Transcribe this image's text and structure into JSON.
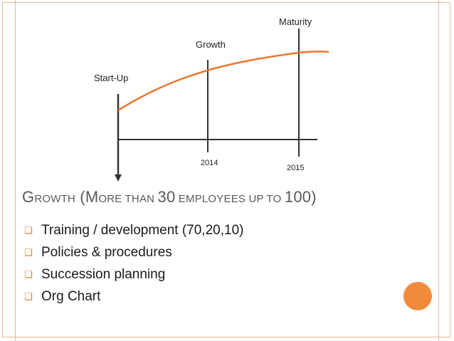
{
  "diagram": {
    "stages": [
      {
        "label": "Start-Up"
      },
      {
        "label": "Growth"
      },
      {
        "label": "Maturity"
      }
    ],
    "years": [
      "2014",
      "2015"
    ],
    "colors": {
      "curve": "#e8772e",
      "axis": "#333333"
    }
  },
  "heading": {
    "w1_cap": "G",
    "w1_rest": "ROWTH",
    "p_open": " (",
    "w2_cap": "M",
    "w2_rest": "ORE THAN ",
    "num1": "30",
    "w3_rest": " EMPLOYEES UP TO ",
    "num2": "100",
    "p_close": ")"
  },
  "bullets": [
    "Training / development (70,20,10)",
    "Policies & procedures",
    "Succession planning",
    "Org Chart"
  ],
  "colors": {
    "accent": "#e8772e",
    "frame": "#e8b892",
    "circle": "#f28a3c",
    "heading": "#595959"
  },
  "icons": {
    "bullet": "hollow-square-bullet-icon"
  }
}
